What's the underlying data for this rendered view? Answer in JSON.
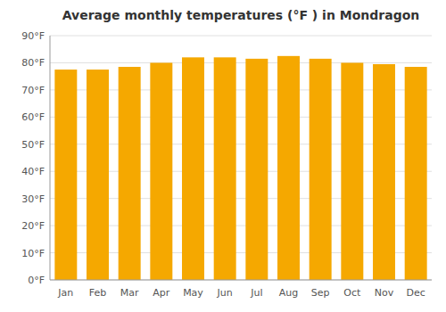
{
  "chart_data": {
    "type": "bar",
    "title": "Average monthly temperatures (°F ) in Mondragon",
    "categories": [
      "Jan",
      "Feb",
      "Mar",
      "Apr",
      "May",
      "Jun",
      "Jul",
      "Aug",
      "Sep",
      "Oct",
      "Nov",
      "Dec"
    ],
    "values": [
      77.5,
      77.5,
      78.5,
      80.0,
      82.0,
      82.0,
      81.5,
      82.5,
      81.5,
      80.0,
      79.5,
      78.5
    ],
    "color": "#F5A800",
    "ylim": [
      0,
      90
    ],
    "yticks": [
      {
        "value": 0,
        "label": "0°F"
      },
      {
        "value": 10,
        "label": "10°F"
      },
      {
        "value": 20,
        "label": "20°F"
      },
      {
        "value": 30,
        "label": "30°F"
      },
      {
        "value": 40,
        "label": "40°F"
      },
      {
        "value": 50,
        "label": "50°F"
      },
      {
        "value": 60,
        "label": "60°F"
      },
      {
        "value": 70,
        "label": "70°F"
      },
      {
        "value": 80,
        "label": "80°F"
      },
      {
        "value": 90,
        "label": "90°F"
      }
    ],
    "grid": true
  }
}
